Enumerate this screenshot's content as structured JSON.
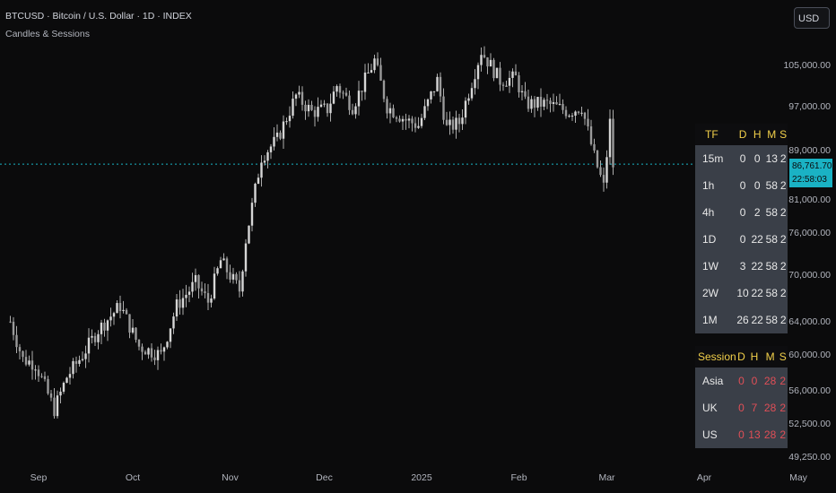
{
  "header": {
    "title": "BTCUSD · Bitcoin / U.S. Dollar · 1D · INDEX",
    "subtitle": "Candles & Sessions",
    "currency": "USD"
  },
  "price_badge": {
    "price": "86,761.70",
    "countdown": "22:58:03"
  },
  "timeframe_table": {
    "headers": [
      "TF",
      "D",
      "H",
      "M",
      "S"
    ],
    "rows": [
      [
        "15m",
        "0",
        "0",
        "13",
        "2"
      ],
      [
        "1h",
        "0",
        "0",
        "58",
        "2"
      ],
      [
        "4h",
        "0",
        "2",
        "58",
        "2"
      ],
      [
        "1D",
        "0",
        "22",
        "58",
        "2"
      ],
      [
        "1W",
        "3",
        "22",
        "58",
        "2"
      ],
      [
        "2W",
        "10",
        "22",
        "58",
        "2"
      ],
      [
        "1M",
        "26",
        "22",
        "58",
        "2"
      ]
    ]
  },
  "session_table": {
    "headers": [
      "Session",
      "D",
      "H",
      "M",
      "S"
    ],
    "rows": [
      [
        "Asia",
        "0",
        "0",
        "28",
        "2"
      ],
      [
        "UK",
        "0",
        "7",
        "28",
        "2"
      ],
      [
        "US",
        "0",
        "13",
        "28",
        "2"
      ]
    ]
  },
  "colors": {
    "background": "#0b0b0c",
    "candle": "#d6d6d6",
    "price_line": "#1ab2c4",
    "table_header_text": "#f2d04a",
    "session_value_text": "#e04f57"
  },
  "chart_data": {
    "type": "candlestick",
    "title": "BTCUSD · Bitcoin / U.S. Dollar · 1D · INDEX",
    "yaxis": {
      "scale": "log",
      "ticks": [
        "105,000.00",
        "97,000.00",
        "89,000.00",
        "81,000.00",
        "76,000.00",
        "70,000.00",
        "64,000.00",
        "60,000.00",
        "56,000.00",
        "52,500.00",
        "49,250.00"
      ],
      "tick_values": [
        105000,
        97000,
        89000,
        81000,
        76000,
        70000,
        64000,
        60000,
        56000,
        52500,
        49250
      ],
      "range": [
        48500,
        112000
      ]
    },
    "xaxis": {
      "ticks": [
        "Sep",
        "Oct",
        "Nov",
        "Dec",
        "2025",
        "Feb",
        "Mar",
        "Apr",
        "May"
      ],
      "tick_dates": [
        "2024-09-01",
        "2024-10-01",
        "2024-11-01",
        "2024-12-01",
        "2025-01-01",
        "2025-02-01",
        "2025-03-01",
        "2025-04-01",
        "2025-05-01"
      ]
    },
    "last_price": 86761.7,
    "closes": [
      {
        "date": "2024-08-23",
        "close": 64000
      },
      {
        "date": "2024-08-27",
        "close": 59500
      },
      {
        "date": "2024-08-31",
        "close": 59000
      },
      {
        "date": "2024-09-06",
        "close": 54000
      },
      {
        "date": "2024-09-10",
        "close": 57500
      },
      {
        "date": "2024-09-15",
        "close": 60000
      },
      {
        "date": "2024-09-20",
        "close": 63000
      },
      {
        "date": "2024-09-27",
        "close": 66000
      },
      {
        "date": "2024-10-03",
        "close": 61000
      },
      {
        "date": "2024-10-10",
        "close": 60000
      },
      {
        "date": "2024-10-15",
        "close": 66000
      },
      {
        "date": "2024-10-21",
        "close": 69000
      },
      {
        "date": "2024-10-25",
        "close": 66500
      },
      {
        "date": "2024-10-29",
        "close": 72000
      },
      {
        "date": "2024-11-04",
        "close": 68000
      },
      {
        "date": "2024-11-06",
        "close": 75000
      },
      {
        "date": "2024-11-11",
        "close": 88000
      },
      {
        "date": "2024-11-16",
        "close": 91000
      },
      {
        "date": "2024-11-22",
        "close": 99000
      },
      {
        "date": "2024-11-27",
        "close": 96000
      },
      {
        "date": "2024-12-02",
        "close": 96500
      },
      {
        "date": "2024-12-05",
        "close": 101000
      },
      {
        "date": "2024-12-10",
        "close": 97000
      },
      {
        "date": "2024-12-17",
        "close": 106000
      },
      {
        "date": "2024-12-21",
        "close": 97000
      },
      {
        "date": "2024-12-27",
        "close": 94500
      },
      {
        "date": "2024-12-31",
        "close": 93500
      },
      {
        "date": "2025-01-06",
        "close": 102000
      },
      {
        "date": "2025-01-09",
        "close": 93000
      },
      {
        "date": "2025-01-13",
        "close": 94000
      },
      {
        "date": "2025-01-20",
        "close": 108000
      },
      {
        "date": "2025-01-26",
        "close": 102000
      },
      {
        "date": "2025-01-31",
        "close": 102500
      },
      {
        "date": "2025-02-03",
        "close": 97500
      },
      {
        "date": "2025-02-10",
        "close": 97500
      },
      {
        "date": "2025-02-17",
        "close": 96000
      },
      {
        "date": "2025-02-21",
        "close": 97000
      },
      {
        "date": "2025-02-25",
        "close": 88000
      },
      {
        "date": "2025-02-28",
        "close": 83000
      },
      {
        "date": "2025-03-02",
        "close": 94000
      },
      {
        "date": "2025-03-03",
        "close": 86500
      }
    ]
  }
}
